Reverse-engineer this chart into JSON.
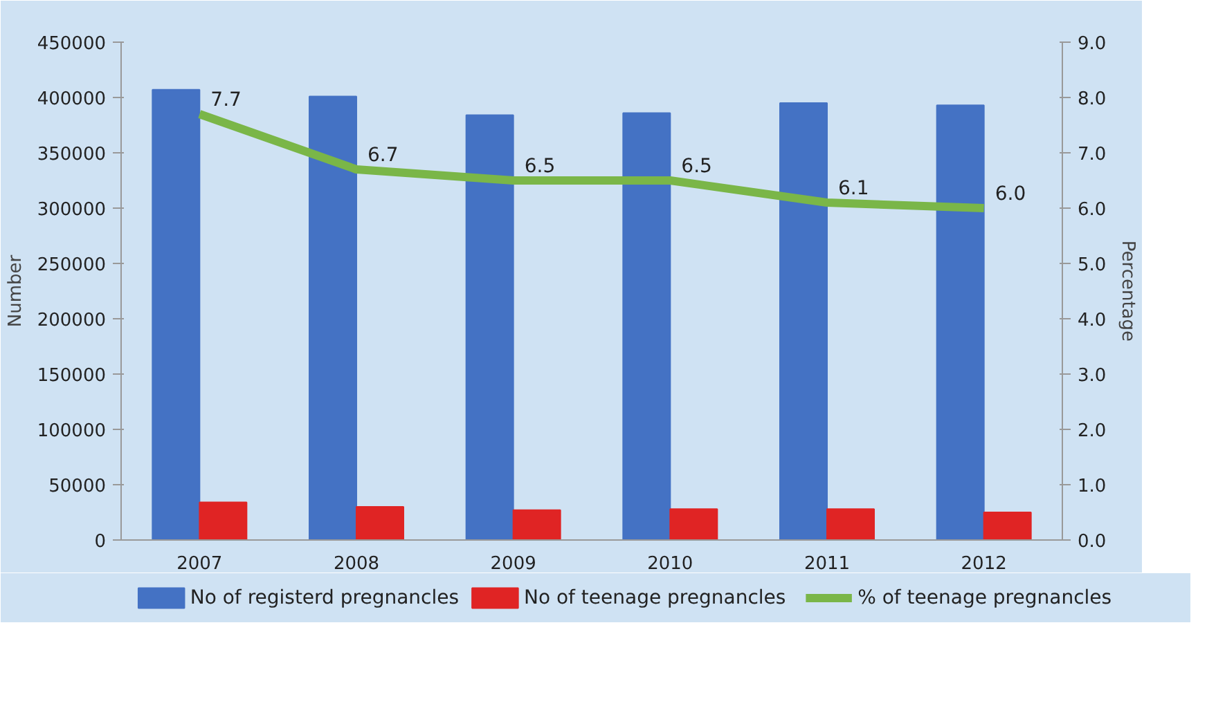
{
  "chart_data": {
    "type": "bar",
    "categories": [
      "2007",
      "2008",
      "2009",
      "2010",
      "2011",
      "2012"
    ],
    "ylabel": "Number",
    "y2label": "Percentage",
    "series": [
      {
        "name": "No of registerd pregnancles",
        "color": "#4472c4",
        "values": [
          407000,
          401000,
          384000,
          386000,
          395000,
          393000
        ]
      },
      {
        "name": "No of teenage pregnancles",
        "color": "#e02424",
        "values": [
          34000,
          30000,
          27000,
          28000,
          28000,
          25000
        ]
      },
      {
        "name": "% of teenage pregnancles",
        "type": "line",
        "axis": "y2",
        "color": "#7ab648",
        "values": [
          7.7,
          6.7,
          6.5,
          6.5,
          6.1,
          6.0
        ],
        "value_labels": [
          "7.7",
          "6.7",
          "6.5",
          "6.5",
          "6.1",
          "6.0"
        ]
      }
    ],
    "ylim": [
      0,
      450000
    ],
    "yticks": [
      0,
      50000,
      100000,
      150000,
      200000,
      250000,
      300000,
      350000,
      400000,
      450000
    ],
    "y2lim": [
      0,
      9
    ],
    "y2ticks": [
      {
        "value": 0,
        "label": "0.0"
      },
      {
        "value": 1,
        "label": "1.0"
      },
      {
        "value": 2,
        "label": "2.0"
      },
      {
        "value": 3,
        "label": "3.0"
      },
      {
        "value": 4,
        "label": "4.0"
      },
      {
        "value": 5,
        "label": "5.0"
      },
      {
        "value": 6,
        "label": "6.0"
      },
      {
        "value": 7,
        "label": "7.0"
      },
      {
        "value": 8,
        "label": "8.0"
      },
      {
        "value": 9,
        "label": "9.0"
      }
    ],
    "grid": false,
    "legend": "bottom"
  }
}
